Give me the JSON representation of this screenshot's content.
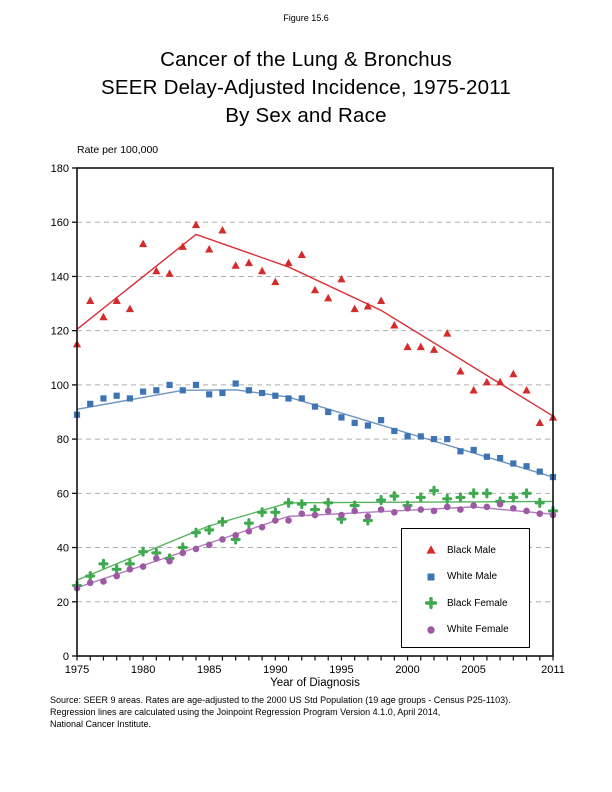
{
  "figure_label": "Figure 15.6",
  "title": {
    "line1": "Cancer of the Lung & Bronchus",
    "line2": "SEER Delay-Adjusted Incidence, 1975-2011",
    "line3": "By Sex and Race"
  },
  "y_axis_unit": "Rate per 100,000",
  "x_axis_title": "Year of Diagnosis",
  "source_lines": {
    "line1": "Source: SEER 9 areas. Rates are age-adjusted to the 2000 US Std Population (19 age groups - Census P25-1103).",
    "line2": "Regression lines are calculated using the Joinpoint Regression Program Version 4.1.0, April 2014,",
    "line3": "National Cancer Institute."
  },
  "colors": {
    "black_male": "#D42B2B",
    "white_male": "#3C74B4",
    "black_female": "#3EA94E",
    "white_female": "#9C59A4",
    "grid": "#B0B0B0",
    "frame": "#111111"
  },
  "chart_data": {
    "type": "scatter",
    "title": "Cancer of the Lung & Bronchus, SEER Delay-Adjusted Incidence, 1975-2011, By Sex and Race",
    "xlabel": "Year of Diagnosis",
    "ylabel": "Rate per 100,000",
    "ylim": [
      0,
      180
    ],
    "y_tick_step": 20,
    "grid": "horizontal-dashed",
    "legend_position": "inside-lower-right",
    "x": [
      1975,
      1976,
      1977,
      1978,
      1979,
      1980,
      1981,
      1982,
      1983,
      1984,
      1985,
      1986,
      1987,
      1988,
      1989,
      1990,
      1991,
      1992,
      1993,
      1994,
      1995,
      1996,
      1997,
      1998,
      1999,
      2000,
      2001,
      2002,
      2003,
      2004,
      2005,
      2006,
      2007,
      2008,
      2009,
      2010,
      2011
    ],
    "x_tick_labels": [
      1975,
      1980,
      1985,
      1990,
      1995,
      2000,
      2005,
      2011
    ],
    "series": [
      {
        "name": "Black Male",
        "marker": "triangle",
        "color": "#D42B2B",
        "line_color": "#D93036",
        "values": [
          115,
          131,
          125,
          131,
          128,
          152,
          142,
          141,
          151,
          159,
          150,
          157,
          144,
          145,
          142,
          138,
          145,
          148,
          135,
          132,
          139,
          128,
          129,
          131,
          122,
          114,
          114,
          113,
          119,
          105,
          98,
          101,
          101,
          104,
          98,
          86,
          88
        ],
        "trend": [
          [
            1975,
            120.5
          ],
          [
            1984,
            155.5
          ],
          [
            1991,
            143.5
          ],
          [
            1998,
            127.5
          ],
          [
            2011,
            88.5
          ]
        ]
      },
      {
        "name": "White Male",
        "marker": "square",
        "color": "#3C74B4",
        "line_color": "#6E94C0",
        "values": [
          89,
          93,
          95,
          96,
          95,
          97.5,
          98,
          100,
          98,
          100,
          96.5,
          97,
          100.5,
          98,
          97,
          96,
          95,
          95,
          92,
          90,
          88,
          86,
          85,
          87,
          83,
          81,
          81,
          80,
          80,
          75.5,
          76,
          73.5,
          73,
          71,
          70,
          68,
          66
        ],
        "trend": [
          [
            1975,
            91
          ],
          [
            1983,
            98
          ],
          [
            1987,
            98.2
          ],
          [
            1991,
            95.5
          ],
          [
            2011,
            66
          ]
        ]
      },
      {
        "name": "Black Female",
        "marker": "plus",
        "color": "#3EA94E",
        "line_color": "#55B35B",
        "values": [
          26,
          29.5,
          34,
          32,
          34,
          38.5,
          38,
          36,
          40,
          45.5,
          46.5,
          49.5,
          43,
          49,
          53,
          53,
          56.5,
          56,
          54,
          56.5,
          50.5,
          55.5,
          50,
          57.5,
          59,
          55.5,
          58.5,
          61,
          58,
          58.5,
          60,
          60,
          57,
          58.5,
          60,
          56.5,
          53.5
        ],
        "trend": [
          [
            1975,
            28
          ],
          [
            1985,
            48
          ],
          [
            1991,
            56.5
          ],
          [
            2011,
            57
          ]
        ]
      },
      {
        "name": "White Female",
        "marker": "circle",
        "color": "#9C59A4",
        "line_color": "#B27CBC",
        "values": [
          25,
          27,
          27.5,
          29.5,
          32,
          33,
          36,
          35,
          38,
          39.5,
          41,
          43,
          44.5,
          46,
          47.5,
          50,
          50,
          52.5,
          52,
          53.5,
          52,
          53.5,
          51.5,
          54,
          53,
          54.5,
          54,
          53.5,
          55,
          54,
          55.5,
          55,
          56,
          54.5,
          53.5,
          52.5,
          52
        ],
        "trend": [
          [
            1975,
            25.2
          ],
          [
            1991,
            51.5
          ],
          [
            2005,
            55
          ],
          [
            2011,
            52.3
          ]
        ]
      }
    ]
  }
}
